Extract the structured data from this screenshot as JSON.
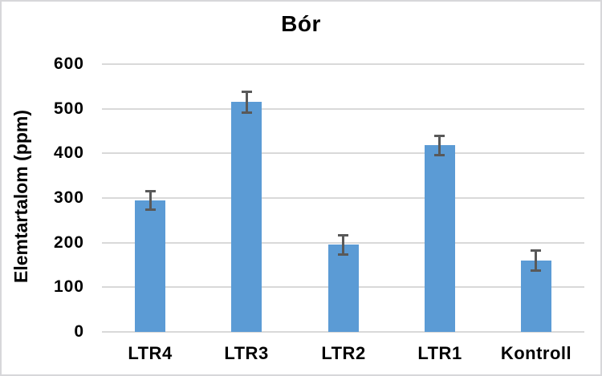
{
  "chart_data": {
    "type": "bar",
    "title": "Bór",
    "ylabel": "Elemtartalom (ppm)",
    "xlabel": "",
    "categories": [
      "LTR4",
      "LTR3",
      "LTR2",
      "LTR1",
      "Kontroll"
    ],
    "values": [
      295,
      515,
      195,
      418,
      160
    ],
    "error_bars": [
      22,
      24,
      23,
      23,
      24
    ],
    "ylim": [
      0,
      600
    ],
    "ytick_step": 100,
    "ytick_labels": [
      "0",
      "100",
      "200",
      "300",
      "400",
      "500",
      "600"
    ],
    "grid": true,
    "legend": "none",
    "colors": {
      "bar_fill": "#5b9bd5",
      "error_bar": "#595959",
      "gridline": "#d9d9d9",
      "axis_line": "#d9d9d9",
      "text": "#000000",
      "chart_border": "#d7d7da",
      "background": "#ffffff"
    }
  }
}
